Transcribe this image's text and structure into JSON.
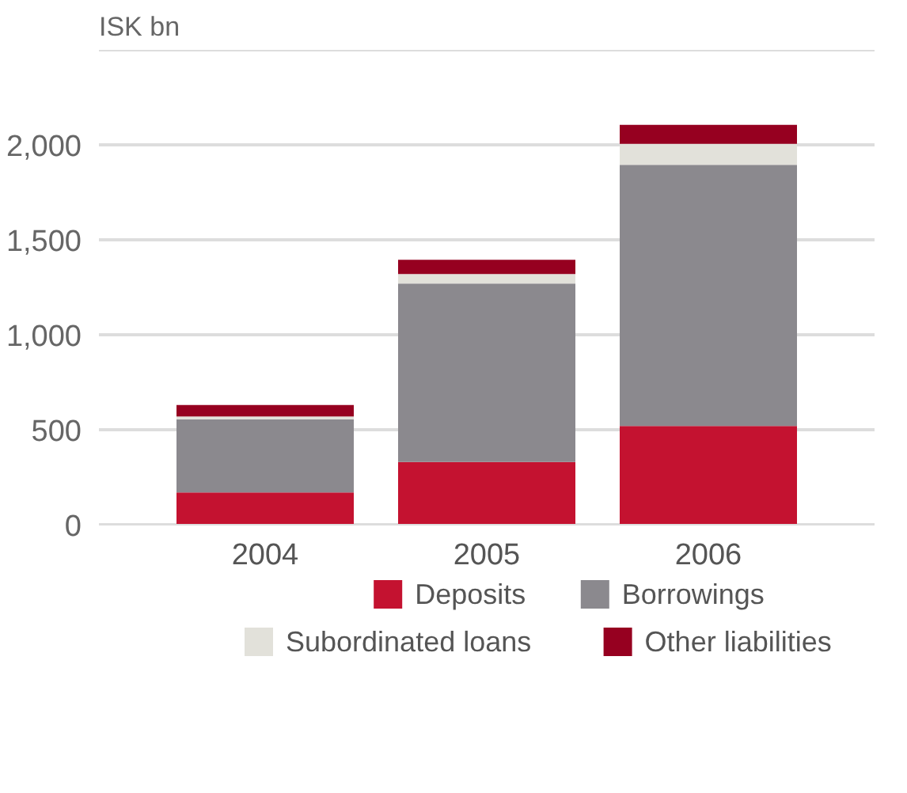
{
  "chart_data": {
    "type": "bar",
    "stacked": true,
    "ylabel": "ISK bn",
    "categories": [
      "2004",
      "2005",
      "2006"
    ],
    "series": [
      {
        "name": "Deposits",
        "color": "#c41230",
        "values": [
          170,
          330,
          520
        ]
      },
      {
        "name": "Borrowings",
        "color": "#8b898e",
        "values": [
          385,
          940,
          1375
        ]
      },
      {
        "name": "Subordinated loans",
        "color": "#e2e1da",
        "values": [
          15,
          50,
          110
        ]
      },
      {
        "name": "Other liabilities",
        "color": "#960020",
        "values": [
          60,
          75,
          100
        ]
      }
    ],
    "ylim": [
      0,
      2500
    ],
    "yticks": [
      0,
      {
        "value": 500,
        "label": "500"
      },
      {
        "value": 1000,
        "label": "1,000"
      },
      {
        "value": 1500,
        "label": "1,500"
      },
      {
        "value": 2000,
        "label": "2,000"
      },
      {
        "value": 2500,
        "label": null
      }
    ],
    "grid": "y",
    "legend": "bottom"
  }
}
